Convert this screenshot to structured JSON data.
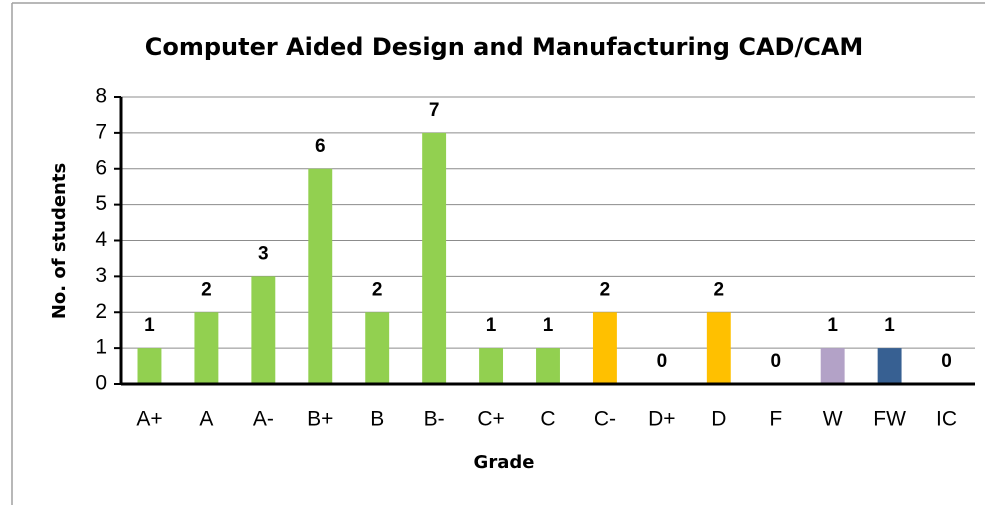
{
  "chart_data": {
    "type": "bar",
    "title": "Computer Aided Design and Manufacturing CAD/CAM",
    "x_label": "Grade",
    "y_label": "No. of students",
    "categories": [
      "A+",
      "A",
      "A-",
      "B+",
      "B",
      "B-",
      "C+",
      "C",
      "C-",
      "D+",
      "D",
      "F",
      "W",
      "FW",
      "IC"
    ],
    "values": [
      1,
      2,
      3,
      6,
      2,
      7,
      1,
      1,
      2,
      0,
      2,
      0,
      1,
      1,
      0
    ],
    "colors": [
      "#92d050",
      "#92d050",
      "#92d050",
      "#92d050",
      "#92d050",
      "#92d050",
      "#92d050",
      "#92d050",
      "#ffc000",
      "#ffc000",
      "#ffc000",
      "#ffc000",
      "#b3a2c7",
      "#376092",
      "#376092"
    ],
    "ylim": [
      0,
      8
    ],
    "yticks": [
      0,
      1,
      2,
      3,
      4,
      5,
      6,
      7,
      8
    ],
    "grid": true
  }
}
